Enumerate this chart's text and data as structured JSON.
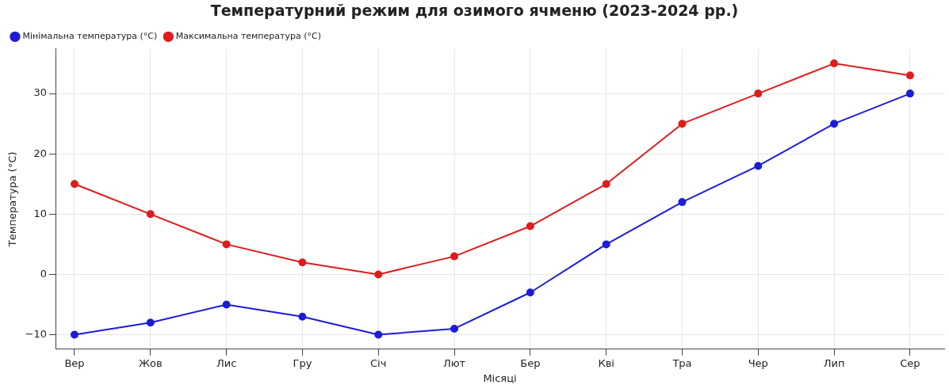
{
  "chart_data": {
    "type": "line",
    "title": "Температурний режим для озимого ячменю (2023-2024 рр.)",
    "xlabel": "Місяці",
    "ylabel": "Температура (°C)",
    "categories": [
      "Вер",
      "Жов",
      "Лис",
      "Гру",
      "Січ",
      "Лют",
      "Бер",
      "Кві",
      "Тра",
      "Чер",
      "Лип",
      "Сер"
    ],
    "series": [
      {
        "name": "Мінімальна температура (°C)",
        "color": "#1c1cd8",
        "values": [
          -10,
          -8,
          -5,
          -7,
          -10,
          -9,
          -3,
          5,
          12,
          18,
          25,
          30
        ]
      },
      {
        "name": "Максимальна температура (°C)",
        "color": "#e01c1c",
        "values": [
          15,
          10,
          5,
          2,
          0,
          3,
          8,
          15,
          25,
          30,
          35,
          33
        ]
      }
    ],
    "ylim": [
      -12.4,
      37.4
    ],
    "yticks": [
      -10,
      0,
      10,
      20,
      30
    ],
    "grid": true,
    "legend": "top left",
    "marker": "circle",
    "line_style": "solid"
  }
}
